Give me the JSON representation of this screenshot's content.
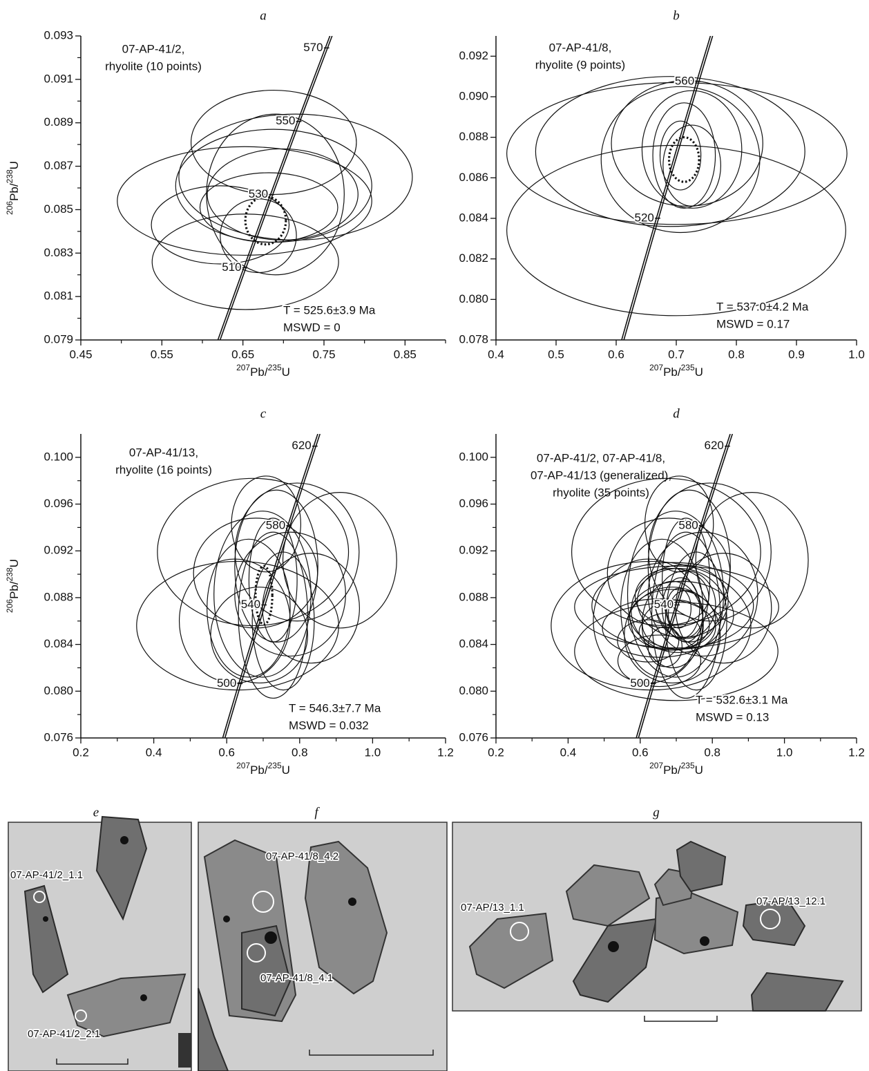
{
  "chart_data": [
    {
      "type": "concordia",
      "panel": "a",
      "sample": [
        "07-AP-41/2,",
        "rhyolite (10 points)"
      ],
      "age": "T = 525.6±3.9 Ma",
      "mswd": "MSWD = 0",
      "xlabel": [
        "207",
        "Pb/",
        "235",
        "U"
      ],
      "ylabel": [
        "206",
        "Pb/",
        "238",
        "U"
      ],
      "xlim": [
        0.45,
        0.9
      ],
      "ylim": [
        0.079,
        0.093
      ],
      "xticks": [
        0.45,
        0.55,
        0.65,
        0.75,
        0.85
      ],
      "xminor": [
        0.5,
        0.6,
        0.7,
        0.8,
        0.9
      ],
      "yticks": [
        0.079,
        0.081,
        0.083,
        0.085,
        0.087,
        0.089,
        0.091,
        0.093
      ],
      "yminor": [
        0.08,
        0.082,
        0.084,
        0.086,
        0.088,
        0.09,
        0.092
      ],
      "concordia_ages": [
        510,
        530,
        550,
        570
      ],
      "points": {
        "x": [
          0.652,
          0.688,
          0.715,
          0.653,
          0.622,
          0.688,
          0.699,
          0.69,
          0.669,
          0.682
        ],
        "y": [
          0.0854,
          0.0881,
          0.0865,
          0.0826,
          0.0843,
          0.0861,
          0.0857,
          0.0857,
          0.0838,
          0.0851
        ],
        "x_err": [
          0.157,
          0.102,
          0.144,
          0.115,
          0.085,
          0.121,
          0.093,
          0.085,
          0.047,
          0.085
        ],
        "y_err": [
          0.0025,
          0.0024,
          0.0029,
          0.0022,
          0.0018,
          0.0026,
          0.0021,
          0.0037,
          0.0017,
          0.0016
        ]
      },
      "mean": {
        "x": 0.678,
        "y": 0.0845,
        "x_err": 0.025,
        "y_err": 0.0011
      }
    },
    {
      "type": "concordia",
      "panel": "b",
      "sample": [
        "07-AP-41/8,",
        "rhyolite (9 points)"
      ],
      "age": "T = 537.0±4.2 Ma",
      "mswd": "MSWD = 0.17",
      "xlabel": [
        "207",
        "Pb/",
        "235",
        "U"
      ],
      "xlim": [
        0.4,
        1.0
      ],
      "ylim": [
        0.078,
        0.093
      ],
      "xticks": [
        0.4,
        0.5,
        0.6,
        0.7,
        0.8,
        0.9,
        {
          "value": 1,
          "label": "1.0"
        }
      ],
      "yticks": [
        0.078,
        {
          "value": 0.08,
          "label": "0.080"
        },
        0.082,
        0.084,
        0.086,
        0.088,
        {
          "value": 0.09,
          "label": "0.090"
        },
        0.092
      ],
      "concordia_ages": [
        520,
        560
      ],
      "points": {
        "x": [
          0.7,
          0.701,
          0.69,
          0.718,
          0.726,
          0.713,
          0.726,
          0.707,
          0.707
        ],
        "y": [
          0.0834,
          0.0872,
          0.0873,
          0.0877,
          0.0874,
          0.0871,
          0.0866,
          0.0871,
          0.0869
        ],
        "x_err": [
          0.282,
          0.283,
          0.224,
          0.126,
          0.083,
          0.052,
          0.048,
          0.034,
          0.132
        ],
        "y_err": [
          0.0042,
          0.0035,
          0.0037,
          0.0031,
          0.0029,
          0.0026,
          0.002,
          0.0017,
          0.0036
        ]
      },
      "mean": {
        "x": 0.713,
        "y": 0.0869,
        "x_err": 0.025,
        "y_err": 0.0011
      }
    },
    {
      "type": "concordia",
      "panel": "c",
      "sample": [
        "07-AP-41/13,",
        "rhyolite (16 points)"
      ],
      "age": "T = 546.3±7.7 Ma",
      "mswd": "MSWD = 0.032",
      "xlabel": [
        "207",
        "Pb/",
        "235",
        "U"
      ],
      "ylabel": [
        "206",
        "Pb/",
        "238",
        "U"
      ],
      "xlim": [
        0.2,
        1.2
      ],
      "ylim": [
        0.076,
        0.102
      ],
      "xticks": [
        0.2,
        0.4,
        0.6,
        0.8,
        {
          "value": 1,
          "label": "1.0"
        },
        1.2
      ],
      "xminor": [
        0.3,
        0.5,
        0.7,
        0.9,
        1.1
      ],
      "yticks": [
        0.076,
        {
          "value": 0.08,
          "label": "0.080"
        },
        0.084,
        0.088,
        0.092,
        0.096,
        {
          "value": 0.1,
          "label": "0.100"
        }
      ],
      "yminor": [
        0.078,
        0.082,
        0.086,
        0.09,
        0.094,
        0.098
      ],
      "concordia_ages": [
        500,
        540,
        580,
        620
      ],
      "points": {
        "x": [
          0.63,
          0.672,
          0.91,
          0.736,
          0.698,
          0.774,
          0.66,
          0.727,
          0.793,
          0.679,
          0.622,
          0.755,
          0.708,
          0.831,
          0.689,
          0.727
        ],
        "y": [
          0.0856,
          0.0919,
          0.0912,
          0.0907,
          0.0883,
          0.0883,
          0.0871,
          0.0865,
          0.0919,
          0.0901,
          0.086,
          0.086,
          0.0943,
          0.0871,
          0.0848,
          0.0895
        ],
        "x_err": [
          0.277,
          0.262,
          0.156,
          0.114,
          0.133,
          0.152,
          0.114,
          0.095,
          0.17,
          0.17,
          0.152,
          0.085,
          0.095,
          0.133,
          0.133,
          0.066
        ],
        "y_err": [
          0.0055,
          0.0063,
          0.0058,
          0.0065,
          0.0071,
          0.0053,
          0.0059,
          0.0071,
          0.0059,
          0.0047,
          0.0053,
          0.0059,
          0.0041,
          0.0047,
          0.0041,
          0.0053
        ]
      },
      "mean": {
        "x": 0.702,
        "y": 0.0882,
        "x_err": 0.023,
        "y_err": 0.0025
      }
    },
    {
      "type": "concordia",
      "panel": "d",
      "sample": [
        "07-AP-41/2, 07-AP-41/8,",
        "07-AP-41/13 (generalized),",
        "rhyolite (35 points)"
      ],
      "age": "T = 532.6±3.1 Ma",
      "mswd": "MSWD = 0.13",
      "xlabel": [
        "207",
        "Pb/",
        "235",
        "U"
      ],
      "xlim": [
        0.2,
        1.2
      ],
      "ylim": [
        0.076,
        0.102
      ],
      "xticks": [
        0.2,
        0.4,
        0.6,
        0.8,
        {
          "value": 1,
          "label": "1.0"
        },
        1.2
      ],
      "xminor": [
        0.3,
        0.5,
        0.7,
        0.9,
        1.1
      ],
      "yticks": [
        0.076,
        {
          "value": 0.08,
          "label": "0.080"
        },
        0.084,
        0.088,
        0.092,
        0.096,
        {
          "value": 0.1,
          "label": "0.100"
        }
      ],
      "yminor": [
        0.078,
        0.082,
        0.086,
        0.09,
        0.094,
        0.098
      ],
      "concordia_ages": [
        500,
        540,
        580,
        620
      ],
      "points": {
        "x": [
          0.652,
          0.688,
          0.715,
          0.653,
          0.622,
          0.688,
          0.699,
          0.69,
          0.669,
          0.682,
          0.7,
          0.701,
          0.69,
          0.718,
          0.726,
          0.713,
          0.726,
          0.707,
          0.707,
          0.63,
          0.672,
          0.91,
          0.736,
          0.698,
          0.774,
          0.66,
          0.727,
          0.793,
          0.679,
          0.622,
          0.755,
          0.708,
          0.831,
          0.689,
          0.727
        ],
        "y": [
          0.0854,
          0.0881,
          0.0865,
          0.0826,
          0.0843,
          0.0861,
          0.0857,
          0.0857,
          0.0838,
          0.0851,
          0.0834,
          0.0872,
          0.0873,
          0.0877,
          0.0874,
          0.0871,
          0.0866,
          0.0871,
          0.0869,
          0.0856,
          0.0919,
          0.0912,
          0.0907,
          0.0883,
          0.0883,
          0.0871,
          0.0865,
          0.0919,
          0.0901,
          0.086,
          0.086,
          0.0943,
          0.0871,
          0.0848,
          0.0895
        ],
        "x_err": [
          0.157,
          0.102,
          0.144,
          0.115,
          0.085,
          0.121,
          0.093,
          0.085,
          0.047,
          0.085,
          0.282,
          0.283,
          0.224,
          0.126,
          0.083,
          0.052,
          0.048,
          0.034,
          0.132,
          0.277,
          0.262,
          0.156,
          0.114,
          0.133,
          0.152,
          0.114,
          0.095,
          0.17,
          0.17,
          0.152,
          0.085,
          0.095,
          0.133,
          0.133,
          0.066
        ],
        "y_err": [
          0.0025,
          0.0024,
          0.0029,
          0.0022,
          0.0018,
          0.0026,
          0.0021,
          0.0037,
          0.0017,
          0.0016,
          0.0042,
          0.0035,
          0.0037,
          0.0031,
          0.0029,
          0.0026,
          0.002,
          0.0017,
          0.0036,
          0.0055,
          0.0063,
          0.0058,
          0.0065,
          0.0071,
          0.0053,
          0.0059,
          0.0071,
          0.0059,
          0.0047,
          0.0053,
          0.0059,
          0.0041,
          0.0047,
          0.0041,
          0.0053
        ]
      }
    }
  ],
  "images": [
    {
      "panel": "e",
      "labels": [
        "07-AP-41/2_1.1",
        "07-AP-41/2_2.1"
      ]
    },
    {
      "panel": "f",
      "labels": [
        "07-AP-41/8_4.2",
        "07-AP-41/8_4.1"
      ]
    },
    {
      "panel": "g",
      "labels": [
        "07-AP/13_1.1",
        "07-AP/13_12.1"
      ]
    }
  ]
}
